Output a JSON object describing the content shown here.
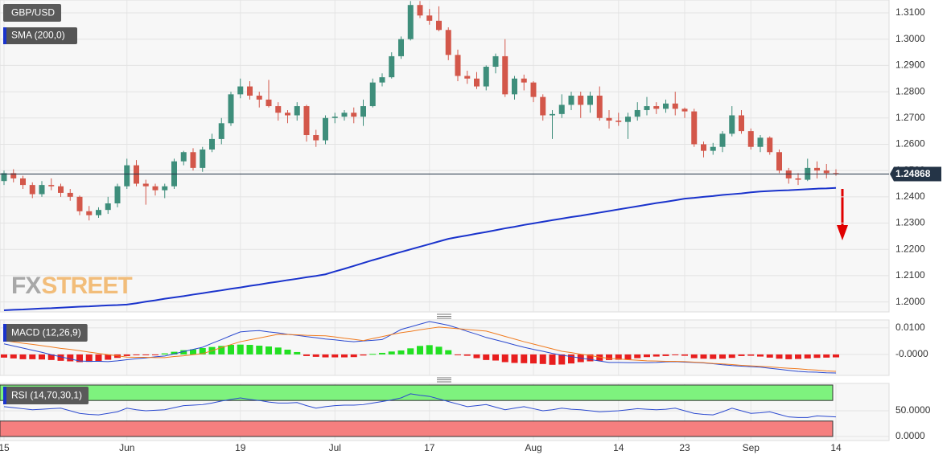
{
  "chart_data": [
    {
      "type": "candlestick",
      "title": "GBP/USD",
      "categories": [
        "15",
        null,
        null,
        null,
        null,
        null,
        null,
        null,
        null,
        null,
        null,
        null,
        null,
        "Jun",
        null,
        null,
        null,
        null,
        null,
        null,
        null,
        null,
        null,
        null,
        null,
        "19",
        null,
        null,
        null,
        null,
        null,
        null,
        null,
        null,
        null,
        "Jul",
        null,
        null,
        null,
        null,
        null,
        null,
        null,
        null,
        null,
        "17",
        null,
        null,
        null,
        null,
        null,
        null,
        null,
        null,
        null,
        null,
        "Aug",
        null,
        null,
        null,
        null,
        null,
        null,
        null,
        null,
        "14",
        null,
        null,
        null,
        null,
        null,
        null,
        "23",
        null,
        null,
        null,
        null,
        null,
        null,
        "Sep",
        null,
        null,
        null,
        null,
        null,
        null,
        null,
        null,
        "14"
      ],
      "open": [
        1.246,
        1.249,
        1.247,
        1.2445,
        1.241,
        1.2445,
        1.244,
        1.2415,
        1.24,
        1.2345,
        1.233,
        1.235,
        1.2375,
        1.244,
        1.252,
        1.245,
        1.244,
        1.2425,
        1.244,
        1.2535,
        1.257,
        1.251,
        1.258,
        1.262,
        1.268,
        1.279,
        1.282,
        1.2785,
        1.277,
        1.2745,
        1.272,
        1.271,
        1.2745,
        1.2635,
        1.2615,
        1.27,
        1.2705,
        1.272,
        1.2705,
        1.2745,
        1.2835,
        1.2855,
        1.2935,
        1.3,
        1.313,
        1.309,
        1.307,
        1.3035,
        1.294,
        1.286,
        1.285,
        1.282,
        1.2895,
        1.2935,
        1.279,
        1.285,
        1.2835,
        1.278,
        1.271,
        1.2715,
        1.275,
        1.2785,
        1.275,
        1.2785,
        1.27,
        1.269,
        1.2685,
        1.2705,
        1.273,
        1.2745,
        1.2735,
        1.2755,
        1.2735,
        1.2725,
        1.26,
        1.2575,
        1.259,
        1.264,
        1.271,
        1.265,
        1.259,
        1.2625,
        1.257,
        1.25,
        1.247,
        1.2465,
        1.251,
        1.25,
        1.249
      ],
      "high": [
        1.25,
        1.2505,
        1.248,
        1.2455,
        1.246,
        1.247,
        1.245,
        1.243,
        1.2405,
        1.2365,
        1.236,
        1.24,
        1.245,
        1.2545,
        1.254,
        1.2465,
        1.245,
        1.245,
        1.2545,
        1.2575,
        1.2585,
        1.259,
        1.264,
        1.27,
        1.28,
        1.285,
        1.284,
        1.28,
        1.2845,
        1.276,
        1.273,
        1.276,
        1.275,
        1.2655,
        1.271,
        1.272,
        1.273,
        1.274,
        1.277,
        1.285,
        1.287,
        1.295,
        1.301,
        1.3145,
        1.3145,
        1.3115,
        1.3125,
        1.3045,
        1.296,
        1.288,
        1.2875,
        1.29,
        1.2945,
        1.3,
        1.286,
        1.2865,
        1.284,
        1.279,
        1.273,
        1.279,
        1.28,
        1.28,
        1.28,
        1.282,
        1.273,
        1.272,
        1.272,
        1.276,
        1.278,
        1.276,
        1.277,
        1.28,
        1.274,
        1.2735,
        1.261,
        1.2605,
        1.265,
        1.2745,
        1.273,
        1.266,
        1.2635,
        1.263,
        1.258,
        1.251,
        1.249,
        1.2545,
        1.2535,
        1.2525,
        1.2505
      ],
      "low": [
        1.2445,
        1.2455,
        1.243,
        1.2395,
        1.24,
        1.2425,
        1.24,
        1.2385,
        1.233,
        1.231,
        1.232,
        1.2335,
        1.236,
        1.243,
        1.244,
        1.237,
        1.2405,
        1.2395,
        1.243,
        1.252,
        1.25,
        1.2495,
        1.257,
        1.26,
        1.267,
        1.2775,
        1.277,
        1.274,
        1.274,
        1.269,
        1.268,
        1.269,
        1.261,
        1.259,
        1.26,
        1.268,
        1.269,
        1.268,
        1.267,
        1.274,
        1.282,
        1.285,
        1.2925,
        1.2995,
        1.308,
        1.3055,
        1.303,
        1.292,
        1.284,
        1.283,
        1.281,
        1.2805,
        1.287,
        1.278,
        1.277,
        1.2805,
        1.276,
        1.269,
        1.262,
        1.27,
        1.273,
        1.27,
        1.272,
        1.269,
        1.266,
        1.267,
        1.262,
        1.269,
        1.271,
        1.2715,
        1.272,
        1.271,
        1.27,
        1.259,
        1.255,
        1.256,
        1.257,
        1.263,
        1.264,
        1.258,
        1.257,
        1.256,
        1.249,
        1.245,
        1.2445,
        1.246,
        1.247,
        1.247,
        1.248
      ],
      "close": [
        1.249,
        1.247,
        1.2445,
        1.241,
        1.2445,
        1.244,
        1.2415,
        1.24,
        1.2345,
        1.233,
        1.235,
        1.2375,
        1.244,
        1.252,
        1.245,
        1.244,
        1.2425,
        1.244,
        1.2535,
        1.257,
        1.251,
        1.258,
        1.262,
        1.268,
        1.279,
        1.282,
        1.2785,
        1.277,
        1.2745,
        1.272,
        1.271,
        1.2745,
        1.2635,
        1.2615,
        1.27,
        1.2705,
        1.272,
        1.2705,
        1.2745,
        1.2835,
        1.2855,
        1.2935,
        1.3,
        1.313,
        1.309,
        1.307,
        1.3035,
        1.294,
        1.286,
        1.285,
        1.282,
        1.2895,
        1.2935,
        1.279,
        1.285,
        1.2835,
        1.278,
        1.271,
        1.2715,
        1.275,
        1.2785,
        1.275,
        1.2785,
        1.27,
        1.269,
        1.2685,
        1.2705,
        1.273,
        1.2745,
        1.2735,
        1.2755,
        1.2735,
        1.2725,
        1.26,
        1.2575,
        1.259,
        1.264,
        1.271,
        1.265,
        1.259,
        1.2625,
        1.257,
        1.25,
        1.247,
        1.2465,
        1.251,
        1.25,
        1.249,
        1.24868
      ],
      "up_color": "#3e8e7b",
      "down_color": "#d3574a",
      "series": [
        {
          "name": "SMA (200,0)",
          "color": "#1a33cc",
          "values": [
            1.1968,
            1.197,
            1.1971,
            1.1973,
            1.1975,
            1.1976,
            1.1978,
            1.198,
            1.1982,
            1.1983,
            1.1985,
            1.1987,
            1.1988,
            1.199,
            1.1995,
            1.2001,
            1.2006,
            1.2012,
            1.2017,
            1.2022,
            1.2028,
            1.2033,
            1.2039,
            1.2044,
            1.205,
            1.2055,
            1.2061,
            1.2066,
            1.2072,
            1.2077,
            1.2083,
            1.2088,
            1.2094,
            1.2099,
            1.2105,
            1.2116,
            1.2126,
            1.2137,
            1.2148,
            1.2159,
            1.2169,
            1.218,
            1.219,
            1.22,
            1.221,
            1.222,
            1.223,
            1.224,
            1.2247,
            1.2253,
            1.226,
            1.2266,
            1.2273,
            1.228,
            1.2286,
            1.2293,
            1.2299,
            1.2305,
            1.2311,
            1.2317,
            1.2323,
            1.2328,
            1.2334,
            1.234,
            1.2346,
            1.2352,
            1.2358,
            1.2364,
            1.237,
            1.2376,
            1.2381,
            1.2387,
            1.2393,
            1.2396,
            1.24,
            1.2403,
            1.2407,
            1.241,
            1.2413,
            1.2417,
            1.242,
            1.2422,
            1.2424,
            1.2425,
            1.2427,
            1.2429,
            1.2431,
            1.2432,
            1.2434
          ]
        }
      ],
      "last_price": 1.24868,
      "ylim": [
        1.1962,
        1.3149
      ],
      "yticks": [
        {
          "value": 1.31,
          "label": "1.3100"
        },
        {
          "value": 1.3,
          "label": "1.3000"
        },
        {
          "value": 1.29,
          "label": "1.2900"
        },
        {
          "value": 1.28,
          "label": "1.2800"
        },
        {
          "value": 1.27,
          "label": "1.2700"
        },
        {
          "value": 1.26,
          "label": "1.2600"
        },
        {
          "value": 1.25,
          "label": "1.2500"
        },
        {
          "value": 1.24,
          "label": "1.2400"
        },
        {
          "value": 1.23,
          "label": "1.2300"
        },
        {
          "value": 1.22,
          "label": "1.2200"
        },
        {
          "value": 1.21,
          "label": "1.2100"
        },
        {
          "value": 1.2,
          "label": "1.2000"
        }
      ],
      "grid": true,
      "watermark": [
        "FX",
        "STREET"
      ]
    },
    {
      "type": "macd",
      "title": "MACD (12,26,9)",
      "series": [
        {
          "color": "#2b49cf",
          "values": [
            0.004,
            0.0032,
            0.0024,
            0.0016,
            0.0008,
            -0.0001,
            -0.0009,
            -0.0017,
            -0.0025,
            -0.0026,
            -0.0026,
            -0.0027,
            -0.0024,
            -0.002,
            -0.0016,
            -0.0013,
            -0.0009,
            -0.0006,
            0.0002,
            0.0011,
            0.0019,
            0.0027,
            0.0042,
            0.0056,
            0.0071,
            0.0085,
            0.0088,
            0.009,
            0.0085,
            0.0081,
            0.0076,
            0.0072,
            0.0067,
            0.0063,
            0.0058,
            0.0055,
            0.0051,
            0.0048,
            0.0051,
            0.0053,
            0.0056,
            0.0075,
            0.0094,
            0.0104,
            0.0114,
            0.0124,
            0.0117,
            0.011,
            0.0099,
            0.0087,
            0.0076,
            0.0064,
            0.0055,
            0.0046,
            0.0036,
            0.0027,
            0.0019,
            0.0012,
            0.0004,
            -0.0003,
            -0.0008,
            -0.0014,
            -0.0019,
            -0.0025,
            -0.003,
            -0.003,
            -0.0031,
            -0.0031,
            -0.0031,
            -0.003,
            -0.0028,
            -0.0027,
            -0.0029,
            -0.003,
            -0.0032,
            -0.0035,
            -0.0039,
            -0.0042,
            -0.0044,
            -0.0046,
            -0.0048,
            -0.0052,
            -0.0056,
            -0.006,
            -0.0064,
            -0.0066,
            -0.0067,
            -0.0069,
            -0.007
          ]
        },
        {
          "color": "#f07b1f",
          "values": [
            0.0052,
            0.0047,
            0.0042,
            0.0038,
            0.0033,
            0.0028,
            0.0023,
            0.0019,
            0.0014,
            0.0009,
            0.0004,
            -0.0001,
            -0.0005,
            -0.001,
            -0.0011,
            -0.0011,
            -0.0012,
            -0.0012,
            -0.0008,
            -0.0005,
            -0.0001,
            0.0003,
            0.0014,
            0.0026,
            0.0037,
            0.0048,
            0.0055,
            0.0062,
            0.0069,
            0.0076,
            0.0075,
            0.0074,
            0.0072,
            0.0071,
            0.007,
            0.0066,
            0.0061,
            0.0057,
            0.0052,
            0.006,
            0.0067,
            0.0075,
            0.0082,
            0.0087,
            0.0093,
            0.0098,
            0.0103,
            0.01,
            0.0097,
            0.0094,
            0.0091,
            0.0088,
            0.0078,
            0.0068,
            0.0058,
            0.0048,
            0.0039,
            0.003,
            0.0021,
            0.0012,
            0.0007,
            0.0001,
            -0.0004,
            -0.001,
            -0.0015,
            -0.0017,
            -0.002,
            -0.0022,
            -0.0024,
            -0.0025,
            -0.0026,
            -0.0026,
            -0.0027,
            -0.0029,
            -0.0031,
            -0.0034,
            -0.0036,
            -0.0038,
            -0.0041,
            -0.0043,
            -0.0045,
            -0.0047,
            -0.005,
            -0.0052,
            -0.0054,
            -0.0057,
            -0.0059,
            -0.0062,
            -0.0064
          ]
        }
      ],
      "histogram": [
        -0.0012,
        -0.0015,
        -0.0018,
        -0.0018,
        -0.0019,
        -0.0021,
        -0.0024,
        -0.0026,
        -0.0029,
        -0.0028,
        -0.0026,
        -0.002,
        -0.0013,
        -0.0006,
        -0.0003,
        -0.0002,
        -0.0001,
        0.0004,
        0.001,
        0.0016,
        0.0019,
        0.0024,
        0.0028,
        0.0032,
        0.0036,
        0.0037,
        0.0036,
        0.0033,
        0.003,
        0.0026,
        0.0018,
        0.0009,
        -0.0006,
        -0.0009,
        -0.0011,
        -0.0011,
        -0.0011,
        -0.001,
        -0.0004,
        0.0002,
        0.0006,
        0.0011,
        0.0015,
        0.0023,
        0.0032,
        0.0035,
        0.0029,
        0.0016,
        -0.0002,
        -0.0005,
        -0.0014,
        -0.0021,
        -0.0023,
        -0.0029,
        -0.0032,
        -0.0033,
        -0.0034,
        -0.0036,
        -0.0039,
        -0.0038,
        -0.0034,
        -0.0029,
        -0.0026,
        -0.0024,
        -0.0021,
        -0.002,
        -0.0019,
        -0.0014,
        -0.001,
        -0.0008,
        -0.0006,
        -0.0003,
        -0.0005,
        -0.0014,
        -0.0016,
        -0.0017,
        -0.0016,
        -0.0013,
        -0.0006,
        -0.0005,
        -0.0008,
        -0.0012,
        -0.0016,
        -0.0018,
        -0.0017,
        -0.0015,
        -0.0013,
        -0.0012,
        -0.0011
      ],
      "histogram_up_color": "#22e022",
      "histogram_down_color": "#e81e1e",
      "ylim": [
        -0.0079,
        0.013
      ],
      "yticks": [
        {
          "value": 0.01,
          "label": "0.0100"
        },
        {
          "value": 0,
          "label": "-0.0000"
        }
      ],
      "grid": true
    },
    {
      "type": "rsi",
      "title": "RSI (14,70,30,1)",
      "series": [
        {
          "color": "#2b49cf",
          "values": [
            58,
            56,
            54,
            52,
            53,
            54,
            55,
            50,
            45,
            43,
            42,
            45,
            48,
            55,
            52,
            50,
            51,
            52,
            56,
            60,
            61,
            62,
            65,
            69,
            72,
            75,
            72,
            70,
            67,
            65,
            65,
            66,
            60,
            55,
            58,
            60,
            61,
            61,
            62,
            65,
            68,
            71,
            75,
            83,
            80,
            78,
            73,
            68,
            63,
            58,
            60,
            62,
            57,
            52,
            55,
            58,
            54,
            50,
            52,
            55,
            53,
            52,
            50,
            48,
            49,
            50,
            52,
            54,
            53,
            52,
            53,
            55,
            50,
            45,
            43,
            42,
            48,
            55,
            50,
            45,
            46,
            48,
            43,
            38,
            37,
            37,
            40,
            39,
            38
          ]
        }
      ],
      "bands": [
        {
          "from": 70,
          "to": 100,
          "color": "#7ef27e"
        },
        {
          "from": 0,
          "to": 30,
          "color": "#f57f7f"
        }
      ],
      "ylim": [
        -7.8,
        103.1
      ],
      "yticks": [
        {
          "value": 50,
          "label": "50.0000"
        },
        {
          "value": 0,
          "label": "0.0000"
        }
      ],
      "grid": true
    }
  ]
}
